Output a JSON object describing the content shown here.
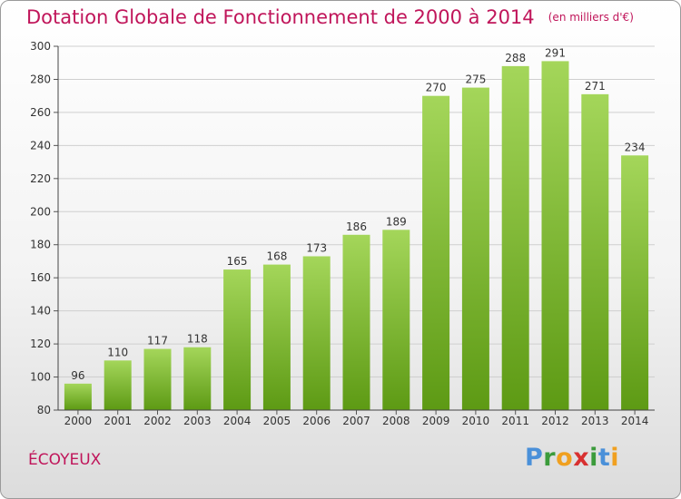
{
  "header": {
    "title": "Dotation Globale de Fonctionnement de 2000 à 2014",
    "unit": "(en milliers d'€)"
  },
  "footer": {
    "commune": "ÉCOYEUX",
    "logo": "Proxiti"
  },
  "logo_letters": [
    {
      "ch": "P",
      "color": "#4a90d9"
    },
    {
      "ch": "r",
      "color": "#3b9b3b"
    },
    {
      "ch": "o",
      "color": "#f0a020"
    },
    {
      "ch": "x",
      "color": "#d83030"
    },
    {
      "ch": "i",
      "color": "#3b9b3b"
    },
    {
      "ch": "t",
      "color": "#4a90d9"
    },
    {
      "ch": "i",
      "color": "#f0a020"
    }
  ],
  "colors": {
    "bar_light": "#a4d65a",
    "bar_dark": "#5d9a14",
    "title": "#c0155a",
    "grid": "#cfcfcf"
  },
  "chart_data": {
    "type": "bar",
    "categories": [
      "2000",
      "2001",
      "2002",
      "2003",
      "2004",
      "2005",
      "2006",
      "2007",
      "2008",
      "2009",
      "2010",
      "2011",
      "2012",
      "2013",
      "2014"
    ],
    "values": [
      96,
      110,
      117,
      118,
      165,
      168,
      173,
      186,
      189,
      270,
      275,
      288,
      291,
      271,
      234
    ],
    "title": "Dotation Globale de Fonctionnement de 2000 à 2014",
    "subtitle": "(en milliers d'€)",
    "xlabel": "",
    "ylabel": "",
    "ylim": [
      80,
      300
    ],
    "yticks": [
      80,
      100,
      120,
      140,
      160,
      180,
      200,
      220,
      240,
      260,
      280,
      300
    ],
    "grid": true,
    "legend": "none"
  }
}
